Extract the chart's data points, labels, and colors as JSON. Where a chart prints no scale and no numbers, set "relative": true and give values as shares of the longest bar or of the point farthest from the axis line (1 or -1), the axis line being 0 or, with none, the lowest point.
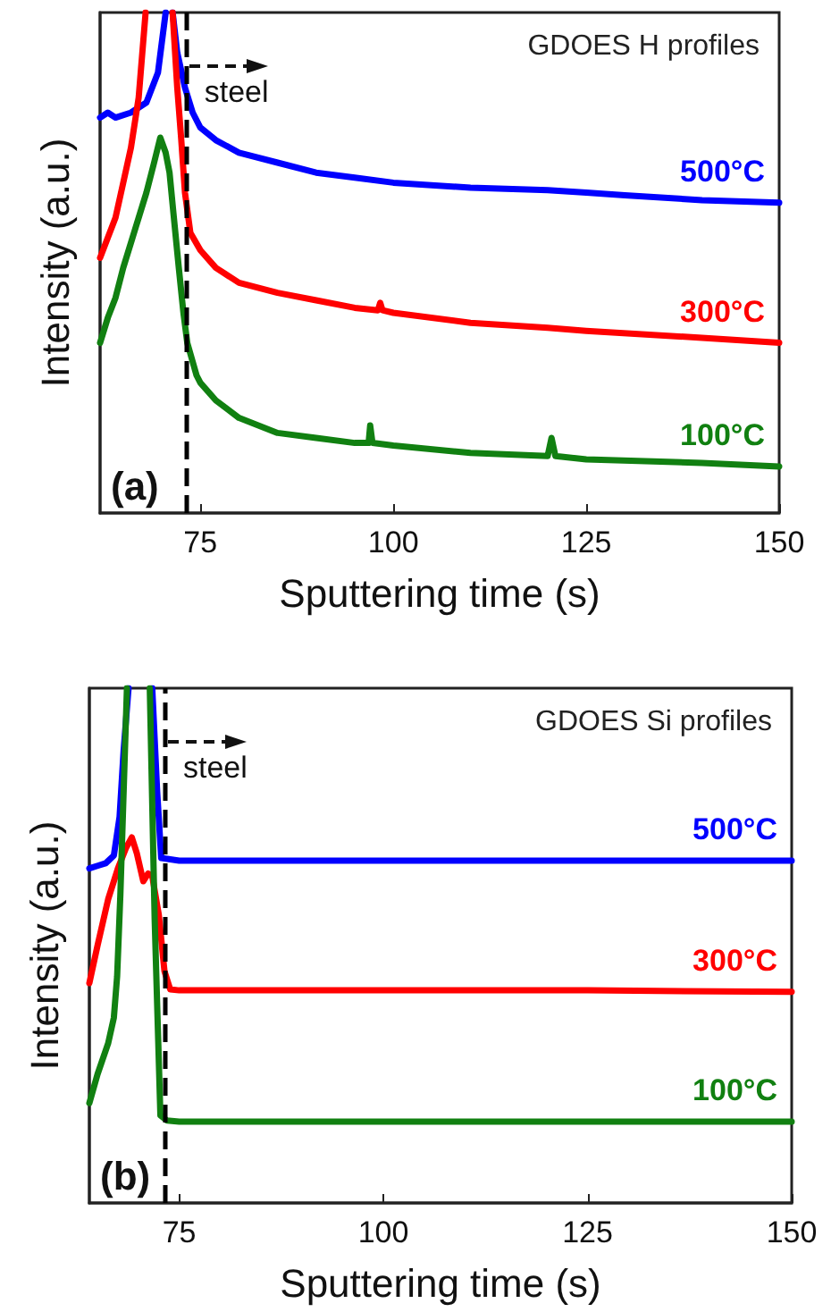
{
  "chart_data": [
    {
      "type": "line",
      "title": "GDOES H profiles",
      "xlabel": "Sputtering time (s)",
      "ylabel": "Intensity (a.u.)",
      "relative": true,
      "xlim": [
        62,
        150
      ],
      "xticks": [
        75,
        100,
        125,
        150
      ],
      "grid": false,
      "legend": false,
      "marker": "none",
      "line_style": "solid",
      "annotations": [
        "(a)"
      ],
      "ref_lines": [
        {
          "axis": "x",
          "value": 73.2,
          "label": "steel",
          "color": "#000000",
          "line_style": "dashed"
        }
      ],
      "series": [
        {
          "name": "500°C",
          "color": "#0000ff",
          "x": [
            62,
            63,
            64,
            66,
            68,
            69.5,
            70.5,
            71,
            71.4,
            72,
            73,
            74,
            75,
            77,
            80,
            85,
            90,
            95,
            100,
            110,
            120,
            125,
            130,
            140,
            150
          ],
          "values": [
            0.79,
            0.8,
            0.79,
            0.8,
            0.82,
            0.88,
            1,
            null,
            1,
            0.92,
            0.85,
            0.8,
            0.77,
            0.745,
            0.72,
            0.7,
            0.68,
            0.67,
            0.66,
            0.65,
            0.645,
            0.64,
            0.635,
            0.625,
            0.62
          ]
        },
        {
          "name": "300°C",
          "color": "#ff0000",
          "x": [
            62,
            63,
            64,
            65,
            66,
            67,
            67.9,
            70,
            71.4,
            72,
            72.5,
            73,
            73.7,
            75,
            77,
            80,
            85,
            90,
            95,
            98,
            98.3,
            98.6,
            100,
            110,
            120,
            125,
            140,
            150
          ],
          "values": [
            0.51,
            0.55,
            0.59,
            0.66,
            0.73,
            0.83,
            1,
            null,
            1,
            0.85,
            0.75,
            0.64,
            0.56,
            0.525,
            0.49,
            0.46,
            0.44,
            0.425,
            0.41,
            0.405,
            0.42,
            0.405,
            0.4,
            0.38,
            0.37,
            0.364,
            0.35,
            0.34
          ]
        },
        {
          "name": "100°C",
          "color": "#118011",
          "x": [
            62,
            63,
            64,
            65,
            66,
            67,
            68,
            69,
            69.8,
            70.5,
            71,
            71.5,
            72.2,
            72.8,
            73.3,
            74.5,
            75,
            77,
            80,
            85,
            90,
            95,
            96.8,
            97,
            97.3,
            100,
            110,
            120,
            120.5,
            121,
            125,
            140,
            150
          ],
          "values": [
            0.34,
            0.39,
            0.43,
            0.49,
            0.54,
            0.59,
            0.64,
            0.7,
            0.75,
            0.72,
            0.68,
            0.6,
            0.49,
            0.4,
            0.34,
            0.275,
            0.26,
            0.225,
            0.19,
            0.16,
            0.15,
            0.14,
            0.14,
            0.175,
            0.14,
            0.135,
            0.12,
            0.114,
            0.15,
            0.114,
            0.107,
            0.1,
            0.093
          ]
        }
      ]
    },
    {
      "type": "line",
      "title": "GDOES Si profiles",
      "xlabel": "Sputtering time (s)",
      "ylabel": "Intensity (a.u.)",
      "relative": true,
      "xlim": [
        64,
        150
      ],
      "xticks": [
        75,
        100,
        125,
        150
      ],
      "grid": false,
      "legend": false,
      "marker": "none",
      "line_style": "solid",
      "annotations": [
        "(b)"
      ],
      "ref_lines": [
        {
          "axis": "x",
          "value": 73.3,
          "label": "steel",
          "color": "#000000",
          "line_style": "dashed"
        }
      ],
      "series": [
        {
          "name": "500°C",
          "color": "#0000ff",
          "x": [
            64,
            65,
            66,
            67,
            67.7,
            68.2,
            68.8,
            70,
            71.7,
            72.3,
            72.8,
            75,
            90,
            100,
            125,
            150
          ],
          "values": [
            0.65,
            0.655,
            0.66,
            0.675,
            0.75,
            0.88,
            1,
            null,
            1,
            0.8,
            0.67,
            0.665,
            0.665,
            0.665,
            0.665,
            0.665
          ]
        },
        {
          "name": "300°C",
          "color": "#ff0000",
          "x": [
            64,
            65,
            66.3,
            67.5,
            68.5,
            69.2,
            69.8,
            70.6,
            71.2,
            71.7,
            72.5,
            73.2,
            73.9,
            75,
            100,
            125,
            150
          ],
          "values": [
            0.427,
            0.5,
            0.59,
            0.65,
            0.69,
            0.71,
            0.68,
            0.625,
            0.64,
            0.635,
            0.56,
            0.45,
            0.415,
            0.413,
            0.413,
            0.413,
            0.41
          ]
        },
        {
          "name": "100°C",
          "color": "#118011",
          "x": [
            64,
            65,
            66.3,
            67,
            67.4,
            67.8,
            68.1,
            68.6,
            70,
            71.4,
            72,
            72.7,
            73.5,
            75,
            100,
            125,
            150
          ],
          "values": [
            0.194,
            0.25,
            0.31,
            0.36,
            0.44,
            0.6,
            0.75,
            1,
            null,
            1,
            0.55,
            0.17,
            0.16,
            0.158,
            0.158,
            0.158,
            0.158
          ]
        }
      ]
    }
  ]
}
